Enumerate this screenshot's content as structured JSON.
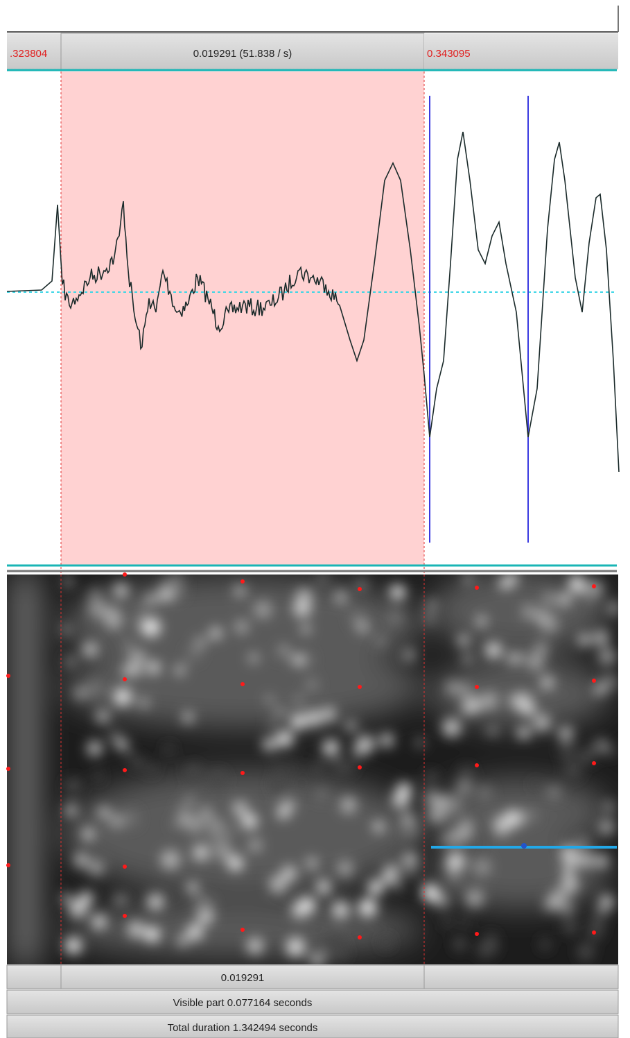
{
  "top_bar": {
    "left_time": ".323804",
    "selection_duration": "0.019291 (51.838 / s)",
    "right_time": "0.343095"
  },
  "bottom_bars": {
    "selection_duration": "0.019291",
    "visible_part": "Visible part 0.077164 seconds",
    "total_duration": "Total duration 1.342494 seconds"
  }
}
